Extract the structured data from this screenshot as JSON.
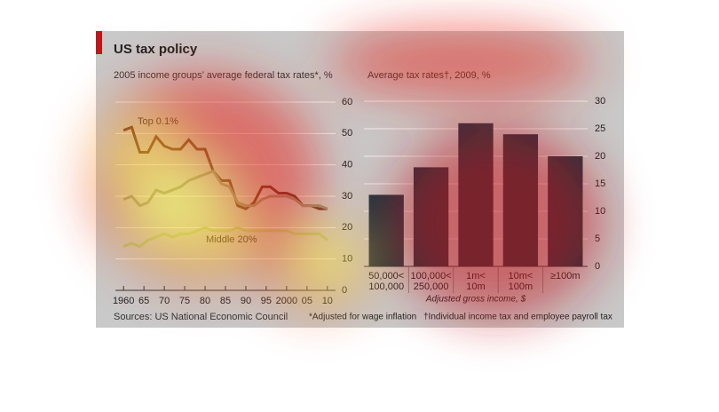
{
  "title": "US tax policy",
  "chart_data": [
    {
      "type": "line",
      "title": "2005 income groups’ average federal tax rates*, %",
      "x": [
        1960,
        1962,
        1964,
        1966,
        1968,
        1970,
        1972,
        1974,
        1976,
        1978,
        1980,
        1982,
        1984,
        1986,
        1988,
        1990,
        1992,
        1994,
        1996,
        1998,
        2000,
        2002,
        2004,
        2006,
        2008,
        2010
      ],
      "xlim": [
        1958,
        2012
      ],
      "xticks": [
        1960,
        {
          "value": 1965,
          "label": "65"
        },
        {
          "value": 1970,
          "label": "70"
        },
        {
          "value": 1975,
          "label": "75"
        },
        {
          "value": 1980,
          "label": "80"
        },
        {
          "value": 1985,
          "label": "85"
        },
        {
          "value": 1990,
          "label": "90"
        },
        {
          "value": 1995,
          "label": "95"
        },
        2000,
        {
          "value": 2005,
          "label": "05"
        },
        {
          "value": 2010,
          "label": "10"
        }
      ],
      "ylim": [
        0,
        60
      ],
      "yticks": [
        0,
        10,
        20,
        30,
        40,
        50,
        60
      ],
      "grid": true,
      "series": [
        {
          "name": "Top 0.1%",
          "color": "#5a2a22",
          "values": [
            51,
            52,
            44,
            44,
            49,
            46,
            45,
            45,
            48,
            45,
            45,
            38,
            35,
            35,
            27,
            26,
            28,
            33,
            33,
            31,
            31,
            30,
            27,
            27,
            26,
            26
          ]
        },
        {
          "color": "#8c8a78",
          "values": [
            29,
            30,
            27,
            28,
            32,
            31,
            32,
            33,
            35,
            36,
            37,
            38,
            34,
            33,
            28,
            27,
            27,
            29,
            30,
            30,
            30,
            29,
            27,
            27,
            27,
            26
          ]
        },
        {
          "name": "Middle 20%",
          "color": "#a9c47f",
          "values": [
            14,
            15,
            14,
            16,
            17,
            18,
            17,
            18,
            18,
            19,
            20,
            19,
            19,
            19,
            20,
            19,
            19,
            19,
            19,
            19,
            19,
            18,
            18,
            18,
            18,
            16
          ]
        }
      ]
    },
    {
      "type": "bar",
      "title": "Average tax rates†, 2009, %",
      "categories": [
        [
          "50,000<",
          "100,000"
        ],
        [
          "100,000<",
          "250,000"
        ],
        [
          "1m<",
          "10m"
        ],
        [
          "10m<",
          "100m"
        ],
        [
          "≥100m"
        ]
      ],
      "values": [
        13,
        18,
        26,
        24,
        20
      ],
      "color": "#1e3542",
      "ylim": [
        0,
        30
      ],
      "yticks": [
        0,
        5,
        10,
        15,
        20,
        25,
        30
      ],
      "grid": true,
      "xlabel": "Adjusted gross income, $"
    }
  ],
  "source": "Sources: US National Economic Council",
  "notes": [
    "*Adjusted for wage inflation",
    "†Individual income tax and employee payroll tax"
  ]
}
